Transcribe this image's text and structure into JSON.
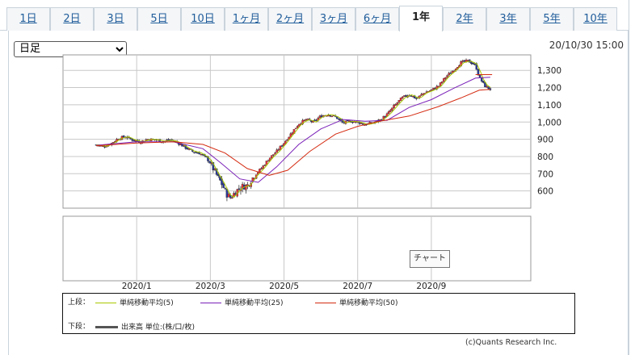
{
  "tabs": [
    {
      "label": "1日",
      "active": false
    },
    {
      "label": "2日",
      "active": false
    },
    {
      "label": "3日",
      "active": false
    },
    {
      "label": "5日",
      "active": false
    },
    {
      "label": "10日",
      "active": false
    },
    {
      "label": "1ヶ月",
      "active": false
    },
    {
      "label": "2ヶ月",
      "active": false
    },
    {
      "label": "3ヶ月",
      "active": false
    },
    {
      "label": "6ヶ月",
      "active": false
    },
    {
      "label": "1年",
      "active": true
    },
    {
      "label": "2年",
      "active": false
    },
    {
      "label": "3年",
      "active": false
    },
    {
      "label": "5年",
      "active": false
    },
    {
      "label": "10年",
      "active": false
    }
  ],
  "period_select": {
    "selected": "日足"
  },
  "timestamp": "20/10/30 15:00",
  "chart_button": "チャート",
  "legend": {
    "upper_label": "上段：",
    "lower_label": "下段：",
    "ma5": "単純移動平均(5)",
    "ma25": "単純移動平均(25)",
    "ma50": "単純移動平均(50)",
    "volume": "出来高 単位:(株/口/枚)"
  },
  "copyright": "(c)Quants Research Inc.",
  "colors": {
    "up": "#e8323a",
    "down": "#2a3a9a",
    "ma5": "#aac800",
    "ma25": "#7a20b8",
    "ma50": "#d42a10",
    "grid": "#c8c8c8"
  },
  "chart_data": {
    "type": "candlestick",
    "title": "",
    "y_ticks": [
      "600",
      "700",
      "800",
      "900",
      "1,000",
      "1,100",
      "1,200",
      "1,300"
    ],
    "y_tick_values": [
      600,
      700,
      800,
      900,
      1000,
      1100,
      1200,
      1300
    ],
    "ylim": [
      500,
      1390
    ],
    "x_ticks": [
      "2020/1",
      "2020/3",
      "2020/5",
      "2020/7",
      "2020/9"
    ],
    "x_tick_months": [
      2.0,
      4.0,
      6.0,
      8.0,
      10.0
    ],
    "x_range_months": [
      0.0,
      12.7
    ],
    "close_series": [
      [
        0.9,
        868
      ],
      [
        1.1,
        858
      ],
      [
        1.3,
        875
      ],
      [
        1.5,
        905
      ],
      [
        1.7,
        915
      ],
      [
        1.9,
        895
      ],
      [
        2.1,
        885
      ],
      [
        2.3,
        900
      ],
      [
        2.5,
        898
      ],
      [
        2.7,
        888
      ],
      [
        2.9,
        895
      ],
      [
        3.1,
        882
      ],
      [
        3.3,
        855
      ],
      [
        3.5,
        830
      ],
      [
        3.7,
        820
      ],
      [
        3.9,
        790
      ],
      [
        4.0,
        760
      ],
      [
        4.15,
        700
      ],
      [
        4.3,
        645
      ],
      [
        4.45,
        580
      ],
      [
        4.55,
        560
      ],
      [
        4.7,
        600
      ],
      [
        4.85,
        625
      ],
      [
        5.0,
        630
      ],
      [
        5.2,
        690
      ],
      [
        5.4,
        735
      ],
      [
        5.6,
        790
      ],
      [
        5.8,
        830
      ],
      [
        6.0,
        880
      ],
      [
        6.2,
        935
      ],
      [
        6.4,
        990
      ],
      [
        6.6,
        1015
      ],
      [
        6.8,
        1000
      ],
      [
        7.0,
        1035
      ],
      [
        7.2,
        1045
      ],
      [
        7.4,
        1030
      ],
      [
        7.6,
        995
      ],
      [
        7.8,
        1005
      ],
      [
        8.0,
        1000
      ],
      [
        8.2,
        985
      ],
      [
        8.4,
        995
      ],
      [
        8.6,
        1010
      ],
      [
        8.8,
        1045
      ],
      [
        9.0,
        1095
      ],
      [
        9.2,
        1140
      ],
      [
        9.4,
        1160
      ],
      [
        9.6,
        1135
      ],
      [
        9.8,
        1170
      ],
      [
        10.0,
        1185
      ],
      [
        10.2,
        1210
      ],
      [
        10.4,
        1265
      ],
      [
        10.6,
        1300
      ],
      [
        10.8,
        1345
      ],
      [
        11.0,
        1355
      ],
      [
        11.2,
        1330
      ],
      [
        11.3,
        1260
      ],
      [
        11.45,
        1210
      ],
      [
        11.6,
        1190
      ]
    ],
    "ma5_end": 1210,
    "ma25": [
      [
        0.9,
        865
      ],
      [
        2.0,
        885
      ],
      [
        3.0,
        885
      ],
      [
        3.8,
        845
      ],
      [
        4.3,
        760
      ],
      [
        4.8,
        670
      ],
      [
        5.3,
        650
      ],
      [
        5.8,
        740
      ],
      [
        6.4,
        870
      ],
      [
        7.0,
        960
      ],
      [
        7.6,
        1015
      ],
      [
        8.2,
        1005
      ],
      [
        8.8,
        1010
      ],
      [
        9.4,
        1085
      ],
      [
        10.0,
        1130
      ],
      [
        10.6,
        1195
      ],
      [
        11.2,
        1255
      ],
      [
        11.6,
        1260
      ]
    ],
    "ma50": [
      [
        0.9,
        862
      ],
      [
        2.0,
        878
      ],
      [
        3.0,
        885
      ],
      [
        3.8,
        870
      ],
      [
        4.4,
        820
      ],
      [
        5.0,
        730
      ],
      [
        5.6,
        690
      ],
      [
        6.1,
        720
      ],
      [
        6.7,
        830
      ],
      [
        7.4,
        930
      ],
      [
        8.0,
        975
      ],
      [
        8.6,
        1005
      ],
      [
        9.4,
        1035
      ],
      [
        10.2,
        1090
      ],
      [
        10.8,
        1140
      ],
      [
        11.3,
        1185
      ],
      [
        11.6,
        1190
      ]
    ],
    "ma_upper_flat": 1275
  }
}
